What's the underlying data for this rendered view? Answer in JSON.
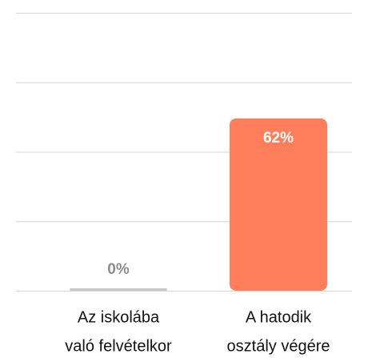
{
  "chart_data": {
    "type": "bar",
    "categories": [
      [
        "Az iskolába",
        "való felvételkor"
      ],
      [
        "A hatodik",
        "osztály végére"
      ]
    ],
    "values": [
      0,
      62
    ],
    "value_labels": [
      "0%",
      "62%"
    ],
    "colors": [
      "#c9c9c9",
      "#ff7e5b"
    ],
    "ylim": [
      0,
      100
    ],
    "yticks": [
      0,
      25,
      50,
      75,
      100
    ],
    "grid": true
  }
}
